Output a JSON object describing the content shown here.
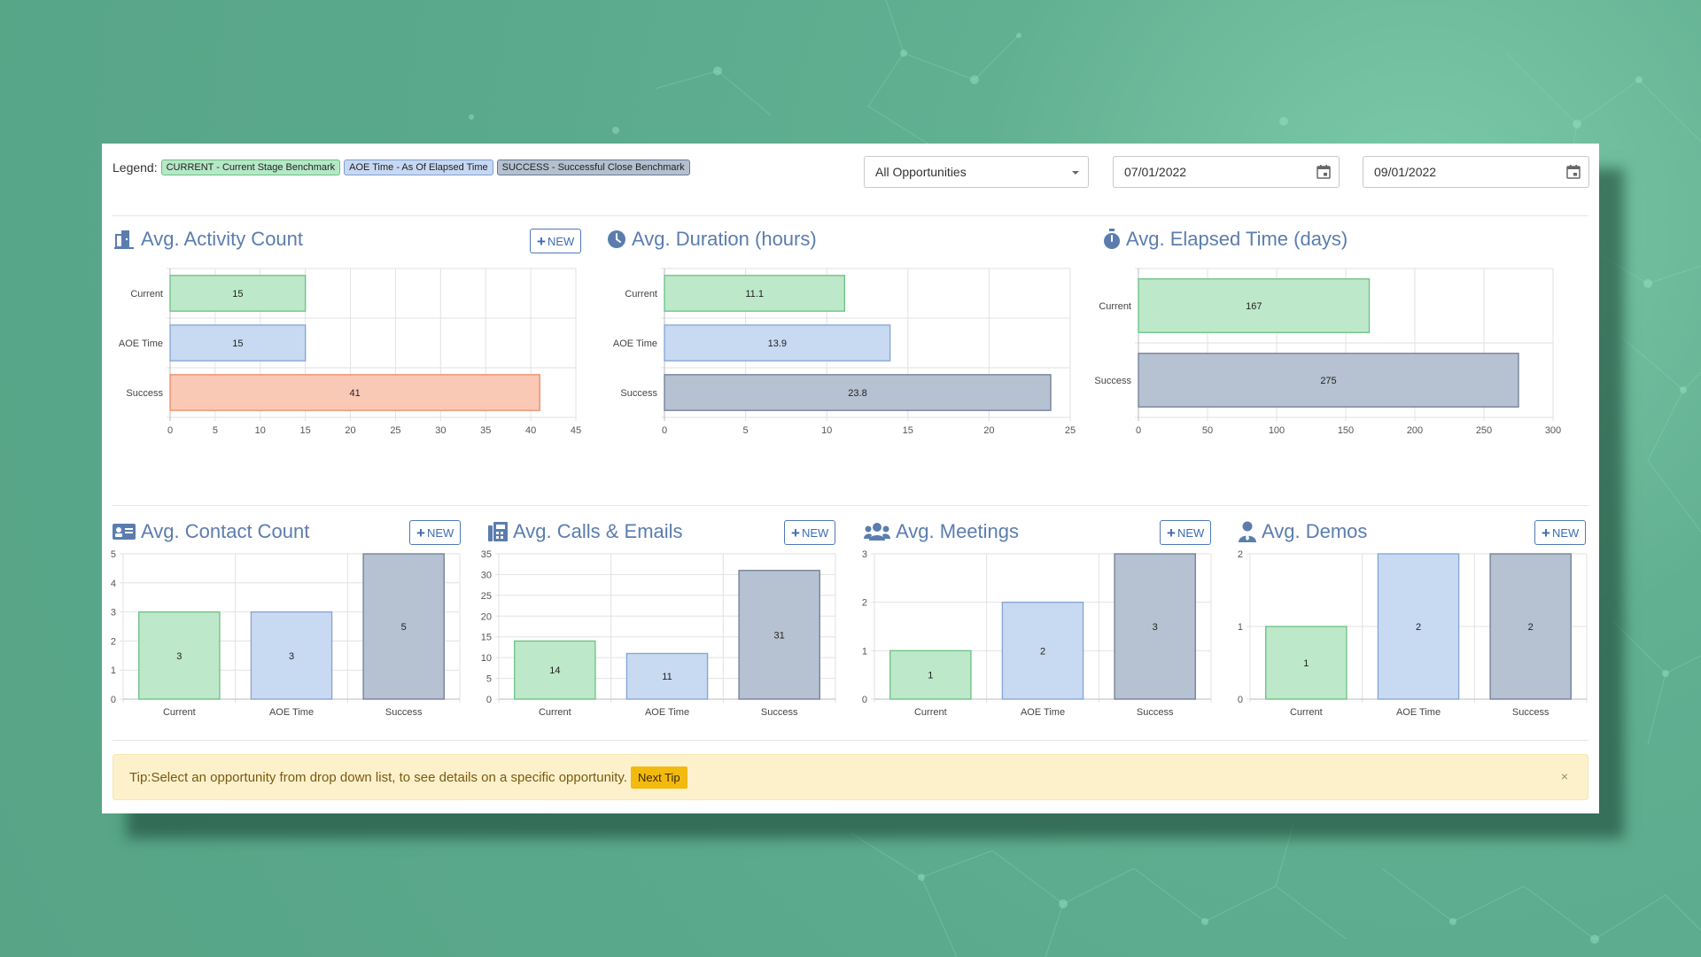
{
  "legend": {
    "label": "Legend:",
    "items": [
      {
        "text": "CURRENT - Current Stage Benchmark",
        "tone": "green"
      },
      {
        "text": "AOE Time - As Of Elapsed Time",
        "tone": "blue"
      },
      {
        "text": "SUCCESS - Successful Close Benchmark",
        "tone": "gray"
      }
    ]
  },
  "filters": {
    "opportunity_select": "All Opportunities",
    "start_date": "07/01/2022",
    "end_date": "09/01/2022"
  },
  "colors": {
    "current_fill": "#bde8c9",
    "current_stroke": "#6bc083",
    "aoe_fill": "#c8d9f2",
    "aoe_stroke": "#84a4d4",
    "success_fill": "#b6c1d1",
    "success_stroke": "#6e7e95",
    "success_orange_fill": "#f9c9b5",
    "success_orange_stroke": "#ef8a66",
    "title_blue": "#5b7dae",
    "tip_button": "#f2b90f"
  },
  "sections": {
    "activity": {
      "title": "Avg. Activity Count",
      "icon": "door-icon",
      "new_label": "NEW"
    },
    "duration": {
      "title": "Avg. Duration (hours)",
      "icon": "clock-icon"
    },
    "elapsed": {
      "title": "Avg. Elapsed Time (days)",
      "icon": "stopwatch-icon"
    },
    "contact": {
      "title": "Avg. Contact Count",
      "icon": "contact-card-icon",
      "new_label": "NEW"
    },
    "calls": {
      "title": "Avg. Calls & Emails",
      "icon": "fax-icon",
      "new_label": "NEW"
    },
    "meetings": {
      "title": "Avg. Meetings",
      "icon": "users-icon",
      "new_label": "NEW"
    },
    "demos": {
      "title": "Avg. Demos",
      "icon": "user-tie-icon",
      "new_label": "NEW"
    }
  },
  "chart_data": [
    {
      "id": "activity",
      "type": "bar",
      "orientation": "horizontal",
      "categories": [
        "Current",
        "AOE Time",
        "Success"
      ],
      "values": [
        15,
        15,
        41
      ],
      "styles": [
        "current",
        "aoe",
        "success_orange"
      ],
      "xlim": [
        0,
        45
      ],
      "xticks": [
        0,
        5,
        10,
        15,
        20,
        25,
        30,
        35,
        40,
        45
      ],
      "grid": true
    },
    {
      "id": "duration",
      "type": "bar",
      "orientation": "horizontal",
      "categories": [
        "Current",
        "AOE Time",
        "Success"
      ],
      "values": [
        11.1,
        13.9,
        23.8
      ],
      "styles": [
        "current",
        "aoe",
        "success"
      ],
      "xlim": [
        0,
        25
      ],
      "xticks": [
        0,
        5,
        10,
        15,
        20,
        25
      ],
      "grid": true
    },
    {
      "id": "elapsed",
      "type": "bar",
      "orientation": "horizontal",
      "categories": [
        "Current",
        "Success"
      ],
      "values": [
        167,
        275
      ],
      "styles": [
        "current",
        "success"
      ],
      "xlim": [
        0,
        300
      ],
      "xticks": [
        0,
        50,
        100,
        150,
        200,
        250,
        300
      ],
      "grid": true
    },
    {
      "id": "contact",
      "type": "bar",
      "orientation": "vertical",
      "categories": [
        "Current",
        "AOE Time",
        "Success"
      ],
      "values": [
        3,
        3,
        5
      ],
      "styles": [
        "current",
        "aoe",
        "success"
      ],
      "ylim": [
        0,
        5
      ],
      "yticks": [
        0,
        1,
        2,
        3,
        4,
        5
      ],
      "grid": true
    },
    {
      "id": "calls",
      "type": "bar",
      "orientation": "vertical",
      "categories": [
        "Current",
        "AOE Time",
        "Success"
      ],
      "values": [
        14,
        11,
        31
      ],
      "styles": [
        "current",
        "aoe",
        "success"
      ],
      "ylim": [
        0,
        35
      ],
      "yticks": [
        0,
        5,
        10,
        15,
        20,
        25,
        30,
        35
      ],
      "grid": true
    },
    {
      "id": "meetings",
      "type": "bar",
      "orientation": "vertical",
      "categories": [
        "Current",
        "AOE Time",
        "Success"
      ],
      "values": [
        1,
        2,
        3
      ],
      "styles": [
        "current",
        "aoe",
        "success"
      ],
      "ylim": [
        0,
        3
      ],
      "yticks": [
        0,
        1,
        2,
        3
      ],
      "grid": true
    },
    {
      "id": "demos",
      "type": "bar",
      "orientation": "vertical",
      "categories": [
        "Current",
        "AOE Time",
        "Success"
      ],
      "values": [
        1,
        2,
        2
      ],
      "styles": [
        "current",
        "aoe",
        "success"
      ],
      "ylim": [
        0,
        2
      ],
      "yticks": [
        0,
        1,
        2
      ],
      "grid": true
    }
  ],
  "tip": {
    "text": "Tip:Select an opportunity from drop down list, to see details on a specific opportunity.",
    "button": "Next Tip",
    "close": "×"
  }
}
